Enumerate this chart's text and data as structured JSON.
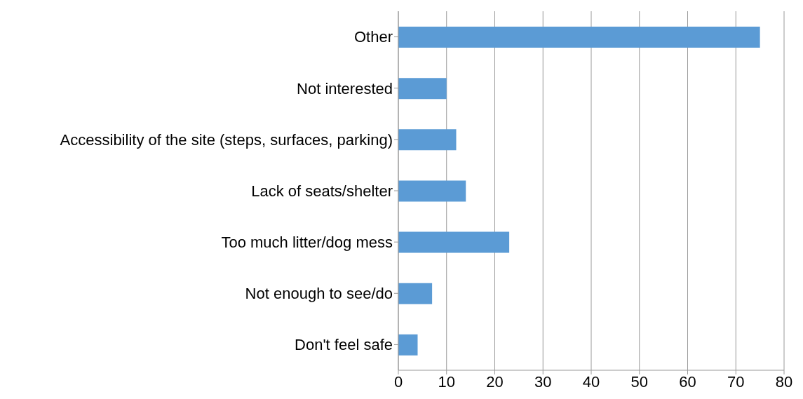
{
  "chart_data": {
    "type": "bar",
    "orientation": "horizontal",
    "categories": [
      "Other",
      "Not interested",
      "Accessibility of the site (steps, surfaces, parking)",
      "Lack of seats/shelter",
      "Too much litter/dog mess",
      "Not enough to see/do",
      "Don't feel safe"
    ],
    "values": [
      75,
      10,
      12,
      14,
      23,
      7,
      4
    ],
    "color": "#5b9bd5",
    "xlim": [
      0,
      80
    ],
    "xticks": [
      0,
      10,
      20,
      30,
      40,
      50,
      60,
      70,
      80
    ],
    "grid": "x"
  }
}
